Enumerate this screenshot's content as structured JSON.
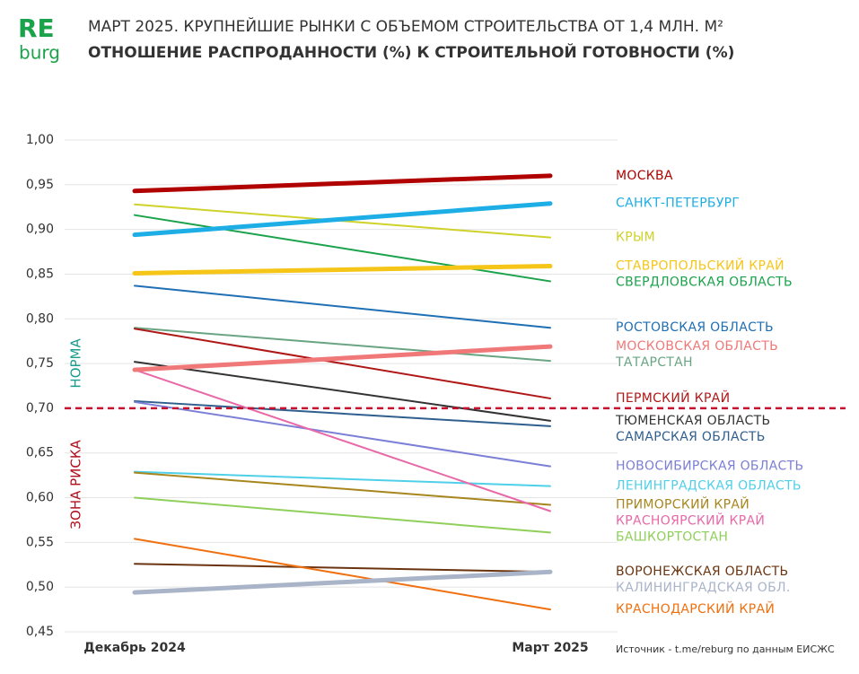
{
  "brand": {
    "first": "RE",
    "second": "burg"
  },
  "chart_data": {
    "type": "slope",
    "title": "МАРТ 2025. КРУПНЕЙШИЕ РЫНКИ С ОБЪЕМОМ СТРОИТЕЛЬСТВА ОТ 1,4 МЛН. М²",
    "subtitle": "ОТНОШЕНИЕ РАСПРОДАННОСТИ (%) К СТРОИТЕЛЬНОЙ ГОТОВНОСТИ (%)",
    "source": "Источник - t.me/reburg по данным ЕИСЖС",
    "categories": [
      "Декабрь 2024",
      "Март 2025"
    ],
    "ylim": [
      0.45,
      1.0
    ],
    "yticks": [
      {
        "value": 0.45,
        "label": "0,45"
      },
      {
        "value": 0.5,
        "label": "0,50"
      },
      {
        "value": 0.55,
        "label": "0,55"
      },
      {
        "value": 0.6,
        "label": "0,60"
      },
      {
        "value": 0.65,
        "label": "0,65"
      },
      {
        "value": 0.7,
        "label": "0,70"
      },
      {
        "value": 0.75,
        "label": "0,75"
      },
      {
        "value": 0.8,
        "label": "0,80"
      },
      {
        "value": 0.85,
        "label": "0,85"
      },
      {
        "value": 0.9,
        "label": "0,90"
      },
      {
        "value": 0.95,
        "label": "0,95"
      },
      {
        "value": 1.0,
        "label": "1,00"
      }
    ],
    "grid": true,
    "threshold": {
      "value": 0.7,
      "color": "#c8102e",
      "above_label": "НОРМА",
      "above_color": "#1a9c8c",
      "below_label": "ЗОНА РИСКА",
      "below_color": "#b0101e"
    },
    "series": [
      {
        "name": "МОСКВА",
        "color": "#b00000",
        "line_width": 5,
        "values": [
          0.943,
          0.96
        ]
      },
      {
        "name": "САНКТ-ПЕТЕРБУРГ",
        "color": "#1eaee6",
        "line_width": 5,
        "values": [
          0.894,
          0.929
        ]
      },
      {
        "name": "КРЫМ",
        "color": "#cfd22a",
        "line_width": 2,
        "values": [
          0.928,
          0.891
        ]
      },
      {
        "name": "СТАВРОПОЛЬСКИЙ КРАЙ",
        "color": "#f5c518",
        "line_width": 5,
        "values": [
          0.851,
          0.859
        ]
      },
      {
        "name": "СВЕРДЛОВСКАЯ ОБЛАСТЬ",
        "color": "#1aa34a",
        "line_width": 2,
        "values": [
          0.916,
          0.842
        ]
      },
      {
        "name": "РОСТОВСКАЯ ОБЛАСТЬ",
        "color": "#1f6fb5",
        "line_width": 2,
        "values": [
          0.837,
          0.79
        ]
      },
      {
        "name": "МОСКОВСКАЯ ОБЛАСТЬ",
        "color": "#f07878",
        "line_width": 5,
        "values": [
          0.743,
          0.769
        ]
      },
      {
        "name": "ТАТАРСТАН",
        "color": "#6aa583",
        "line_width": 2,
        "values": [
          0.79,
          0.753
        ]
      },
      {
        "name": "ПЕРМСКИЙ КРАЙ",
        "color": "#b01818",
        "line_width": 2,
        "values": [
          0.789,
          0.711
        ]
      },
      {
        "name": "ТЮМЕНСКАЯ ОБЛАСТЬ",
        "color": "#333333",
        "line_width": 2,
        "values": [
          0.752,
          0.686
        ]
      },
      {
        "name": "САМАРСКАЯ ОБЛАСТЬ",
        "color": "#2f5f8f",
        "line_width": 2,
        "values": [
          0.708,
          0.68
        ]
      },
      {
        "name": "НОВОСИБИРСКАЯ ОБЛАСТЬ",
        "color": "#7b7fd6",
        "line_width": 2,
        "values": [
          0.707,
          0.635
        ]
      },
      {
        "name": "ЛЕНИНГРАДСКАЯ ОБЛАСТЬ",
        "color": "#4fd0e8",
        "line_width": 2,
        "values": [
          0.629,
          0.613
        ]
      },
      {
        "name": "ПРИМОРСКИЙ КРАЙ",
        "color": "#a8861e",
        "line_width": 2,
        "values": [
          0.628,
          0.592
        ]
      },
      {
        "name": "КРАСНОЯРСКИЙ КРАЙ",
        "color": "#e868a8",
        "line_width": 2,
        "values": [
          0.743,
          0.585
        ]
      },
      {
        "name": "БАШКОРТОСТАН",
        "color": "#8fcf5a",
        "line_width": 2,
        "values": [
          0.6,
          0.561
        ]
      },
      {
        "name": "ВОРОНЕЖСКАЯ ОБЛАСТЬ",
        "color": "#6b3410",
        "line_width": 2,
        "values": [
          0.526,
          0.517
        ]
      },
      {
        "name": "КАЛИНИНГРАДСКАЯ ОБЛ.",
        "color": "#a9b4c8",
        "line_width": 5,
        "values": [
          0.494,
          0.517
        ]
      },
      {
        "name": "КРАСНОДАРСКИЙ КРАЙ",
        "color": "#f07010",
        "line_width": 2,
        "values": [
          0.554,
          0.475
        ]
      }
    ]
  }
}
